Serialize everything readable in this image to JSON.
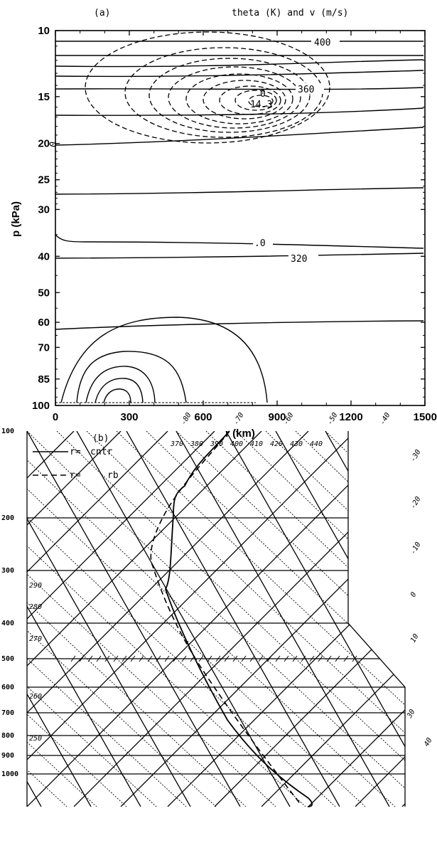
{
  "panel_a": {
    "panel_label": "(a)",
    "title": "theta (K)  and  v (m/s)",
    "ylabel": "p (kPa)",
    "xlabel": "r (km)",
    "contour_labels": [
      "400",
      "360",
      "14.3",
      "0",
      "0",
      ".0",
      "320"
    ]
  },
  "panel_b": {
    "panel_label": "(b)",
    "legend": [
      {
        "prefix": "r=",
        "name": "cntr",
        "style": "solid"
      },
      {
        "prefix": "r=",
        "name": "rb",
        "style": "dashed"
      }
    ]
  },
  "chart_data": [
    {
      "type": "contour",
      "panel": "a",
      "title": "theta (K)  and  v (m/s)",
      "xlabel": "r (km)",
      "ylabel": "p (kPa)",
      "x_ticks": [
        0,
        300,
        600,
        900,
        1200,
        1500
      ],
      "y_ticks": [
        10,
        15,
        20,
        25,
        30,
        40,
        50,
        60,
        70,
        85,
        100
      ],
      "xlim": [
        0,
        1500
      ],
      "ylim": [
        100,
        10
      ],
      "yscale": "log",
      "theta_contours_solid": [
        {
          "label": "400",
          "p_left": 11.0,
          "p_right": 11.0
        },
        {
          "p_left": 12.2,
          "p_right": 12.2
        },
        {
          "p_left": 13.1,
          "p_right": 12.6
        },
        {
          "p_left": 14.0,
          "p_right": 13.5
        },
        {
          "label": "360",
          "p_left": 15.6,
          "p_right": 15.4
        },
        {
          "p_left": 18.4,
          "p_right": 17.5
        },
        {
          "p_left": 21.8,
          "p_right": 19.5
        },
        {
          "p_left": 29.0,
          "p_right": 27.5
        },
        {
          "label": ".0",
          "p_left": 39.0,
          "p_right": 41.0
        },
        {
          "label": "320",
          "p_left": 43.5,
          "p_right": 42.5
        },
        {
          "p_left": 69.0,
          "p_right": 65.0
        }
      ],
      "v_max_label": "14.3",
      "v_max_location": {
        "r": 500,
        "p": 18.0
      },
      "low_level_vortex_center": {
        "r": 220,
        "p": 100
      }
    },
    {
      "type": "skew-T",
      "panel": "b",
      "pressure_ticks": [
        100,
        200,
        300,
        400,
        500,
        600,
        700,
        800,
        900,
        1000
      ],
      "temperature_ticks": [
        -80,
        -70,
        -60,
        -50,
        -40,
        -30,
        -20,
        -10,
        0,
        10,
        30,
        40
      ],
      "theta_e_labels": [
        370,
        380,
        390,
        400,
        410,
        420,
        430,
        440
      ],
      "theta_labels": [
        290,
        280,
        270,
        260,
        250
      ],
      "series": [
        {
          "name": "cntr",
          "style": "solid"
        },
        {
          "name": "rb",
          "style": "dashed"
        }
      ]
    }
  ]
}
